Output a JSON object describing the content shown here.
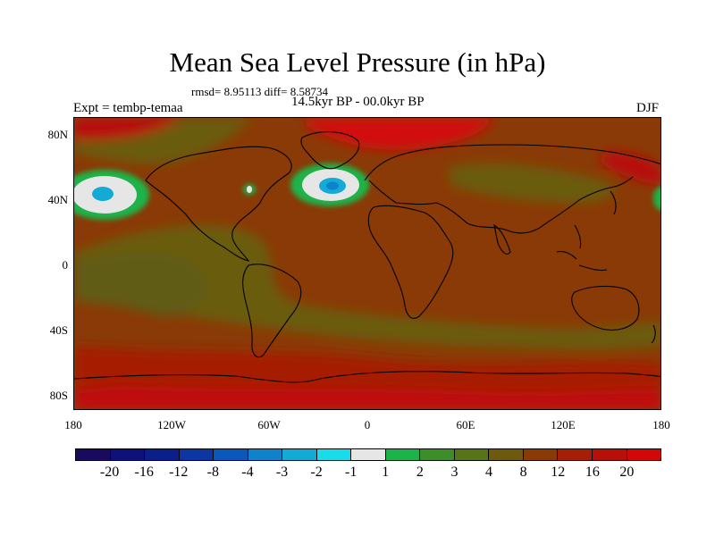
{
  "title": "Mean Sea Level Pressure (in hPa)",
  "stats": "rmsd= 8.95113 diff= 8.58734",
  "subtitle": "14.5kyr BP - 00.0kyr BP",
  "experiment": "Expt = tembp-temaa",
  "season": "DJF",
  "lat_labels": [
    "80N",
    "40N",
    "0",
    "40S",
    "80S"
  ],
  "lon_labels": [
    "180",
    "120W",
    "60W",
    "0",
    "60E",
    "120E",
    "180"
  ],
  "colorbar": {
    "labels": [
      "-20",
      "-16",
      "-12",
      "-8",
      "-4",
      "-3",
      "-2",
      "-1",
      "1",
      "2",
      "3",
      "4",
      "8",
      "12",
      "16",
      "20"
    ],
    "colors": [
      "#1a0a5e",
      "#10107a",
      "#0a1e8c",
      "#0c36a4",
      "#0a58bc",
      "#0f82cc",
      "#13aad6",
      "#18dcea",
      "#e6e6e6",
      "#1cb44a",
      "#3c8e28",
      "#587418",
      "#6e5a0c",
      "#8a3a06",
      "#a51e06",
      "#b81008",
      "#d20808"
    ]
  }
}
